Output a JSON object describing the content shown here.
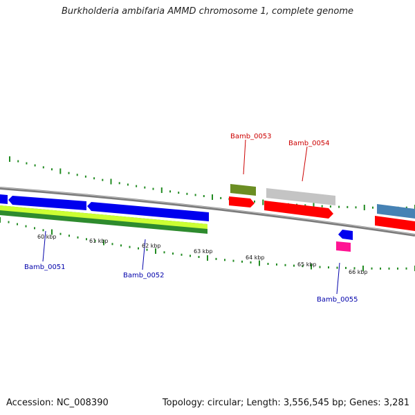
{
  "title": "Burkholderia ambifaria AMMD chromosome 1, complete genome",
  "footer": {
    "accession": "Accession: NC_008390",
    "summary": "Topology: circular; Length: 3,556,545 bp; Genes: 3,281"
  },
  "ticks": [
    {
      "label": "60 kbp"
    },
    {
      "label": "61 kbp"
    },
    {
      "label": "62 kbp"
    },
    {
      "label": "63 kbp"
    },
    {
      "label": "64 kbp"
    },
    {
      "label": "65 kbp"
    },
    {
      "label": "66 kbp"
    }
  ],
  "genes": {
    "bamb_0051": "Bamb_0051",
    "bamb_0052": "Bamb_0052",
    "bamb_0053": "Bamb_0053",
    "bamb_0054": "Bamb_0054",
    "bamb_0055": "Bamb_0055"
  },
  "colors": {
    "forward_label": "#cc0000",
    "reverse_label": "#0000aa",
    "cds_red": "#ff0000",
    "cds_blue": "#0000ee",
    "tick_green": "#228b22",
    "olive": "#6b8e23",
    "grey_feature": "#bbbbbb",
    "steel_blue": "#4682b4",
    "magenta": "#ff1493",
    "lime": "#ccff33"
  }
}
